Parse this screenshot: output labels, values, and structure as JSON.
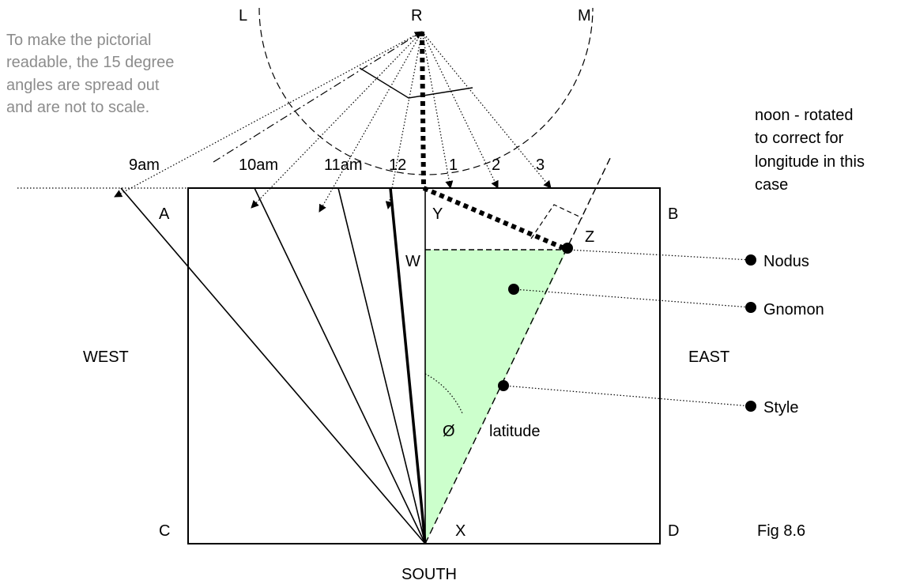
{
  "note": {
    "lines": [
      "To make the pictorial",
      "readable, the 15 degree",
      "angles are spread out",
      "and are not to scale."
    ]
  },
  "arc_labels": {
    "L": "L",
    "R": "R",
    "M": "M"
  },
  "hours": [
    "9am",
    "10am",
    "11am",
    "12",
    "1",
    "2",
    "3"
  ],
  "corners": {
    "A": "A",
    "B": "B",
    "C": "C",
    "D": "D"
  },
  "points": {
    "Y": "Y",
    "Z": "Z",
    "W": "W",
    "X": "X"
  },
  "directions": {
    "west": "WEST",
    "east": "EAST",
    "south": "SOUTH"
  },
  "callouts": {
    "nodus": "Nodus",
    "gnomon": "Gnomon",
    "style": "Style"
  },
  "angle": {
    "symbol": "Ø",
    "label": "latitude"
  },
  "noon_note": {
    "lines": [
      "noon - rotated",
      "to correct for",
      "longitude in this",
      "case"
    ]
  },
  "figure_label": "Fig 8.6",
  "colors": {
    "gnomon_fill": "#ccffcc",
    "note_text": "#8c8c8c"
  }
}
